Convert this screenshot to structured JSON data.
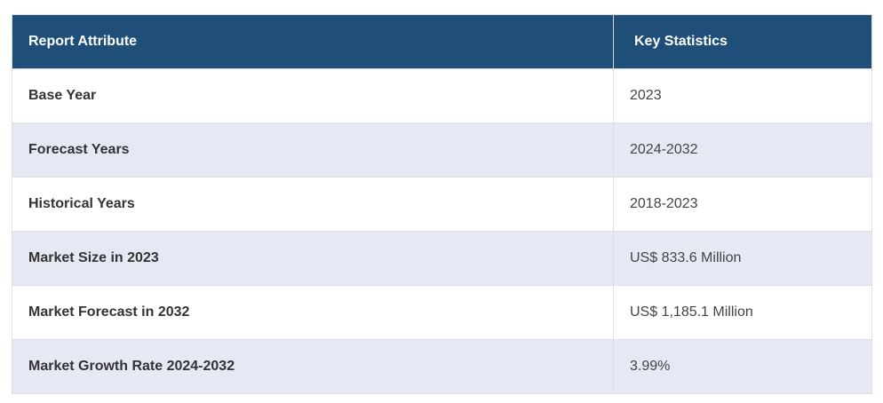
{
  "table": {
    "header": [
      "Report Attribute",
      "Key Statistics"
    ],
    "rows": [
      [
        "Base Year",
        "2023"
      ],
      [
        "Forecast Years",
        "2024-2032"
      ],
      [
        "Historical Years",
        "2018-2023"
      ],
      [
        "Market Size in 2023",
        "US$ 833.6 Million"
      ],
      [
        "Market Forecast in 2032",
        "US$ 1,185.1 Million"
      ],
      [
        "Market Growth Rate 2024-2032",
        "3.99%"
      ]
    ]
  }
}
